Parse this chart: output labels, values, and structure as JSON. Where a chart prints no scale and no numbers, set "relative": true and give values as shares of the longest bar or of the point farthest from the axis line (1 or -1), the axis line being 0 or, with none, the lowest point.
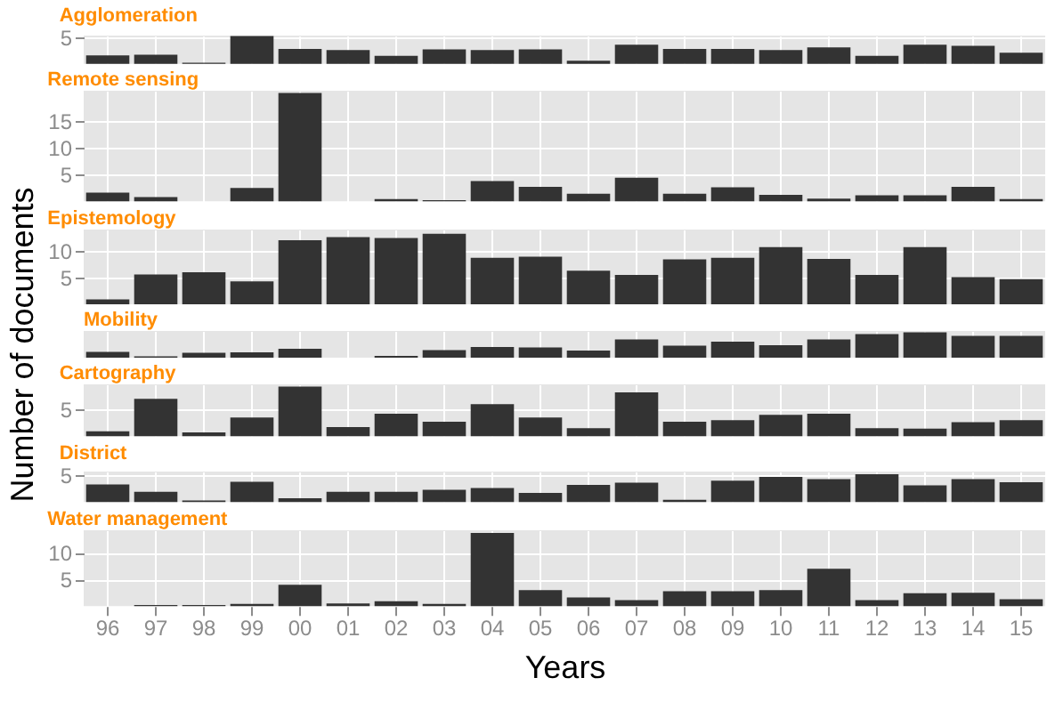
{
  "chart_data": [
    {
      "type": "bar",
      "title": "Agglomeration",
      "categories": [
        "96",
        "97",
        "98",
        "99",
        "00",
        "01",
        "02",
        "03",
        "04",
        "05",
        "06",
        "07",
        "08",
        "09",
        "10",
        "11",
        "12",
        "13",
        "14",
        "15"
      ],
      "values": [
        1.6,
        1.7,
        0.2,
        5.2,
        2.8,
        2.6,
        1.5,
        2.7,
        2.6,
        2.7,
        0.6,
        3.6,
        2.8,
        2.8,
        2.6,
        3.1,
        1.5,
        3.6,
        3.4,
        2.1
      ],
      "color": "#333333",
      "ylim": [
        0,
        5.3
      ],
      "yticks": [
        5
      ],
      "grid": true,
      "tick_labels": "y"
    },
    {
      "type": "bar",
      "title": "Remote sensing",
      "categories": [
        "96",
        "97",
        "98",
        "99",
        "00",
        "01",
        "02",
        "03",
        "04",
        "05",
        "06",
        "07",
        "08",
        "09",
        "10",
        "11",
        "12",
        "13",
        "14",
        "15"
      ],
      "values": [
        1.6,
        0.8,
        0,
        2.5,
        20.3,
        0,
        0.4,
        0.2,
        3.8,
        2.7,
        1.4,
        4.4,
        1.4,
        2.6,
        1.2,
        0.5,
        1.1,
        1.1,
        2.7,
        0.4
      ],
      "color": "#333333",
      "ylim": [
        0,
        20.7
      ],
      "yticks": [
        5,
        10,
        15
      ],
      "grid": true,
      "tick_labels": "y"
    },
    {
      "type": "bar",
      "title": "Epistemology",
      "categories": [
        "96",
        "97",
        "98",
        "99",
        "00",
        "01",
        "02",
        "03",
        "04",
        "05",
        "06",
        "07",
        "08",
        "09",
        "10",
        "11",
        "12",
        "13",
        "14",
        "15"
      ],
      "values": [
        0.9,
        5.6,
        6.0,
        4.3,
        12.0,
        12.6,
        12.4,
        13.2,
        8.7,
        8.9,
        6.3,
        5.5,
        8.4,
        8.7,
        10.7,
        8.5,
        5.5,
        10.7,
        5.1,
        4.7
      ],
      "color": "#333333",
      "ylim": [
        0,
        14
      ],
      "yticks": [
        5,
        10
      ],
      "grid": true,
      "tick_labels": "y"
    },
    {
      "type": "bar",
      "title": "Mobility",
      "ylabel": "Number of documents",
      "categories": [
        "96",
        "97",
        "98",
        "99",
        "00",
        "01",
        "02",
        "03",
        "04",
        "05",
        "06",
        "07",
        "08",
        "09",
        "10",
        "11",
        "12",
        "13",
        "14",
        "15"
      ],
      "values": [
        0.23,
        0.05,
        0.19,
        0.21,
        0.35,
        0,
        0.07,
        0.3,
        0.42,
        0.4,
        0.28,
        0.72,
        0.47,
        0.63,
        0.49,
        0.72,
        0.93,
        1,
        0.86,
        0.86
      ],
      "color": "#333333",
      "relative": true,
      "grid": true,
      "tick_labels": false
    },
    {
      "type": "bar",
      "title": "Cartography",
      "categories": [
        "96",
        "97",
        "98",
        "99",
        "00",
        "01",
        "02",
        "03",
        "04",
        "05",
        "06",
        "07",
        "08",
        "09",
        "10",
        "11",
        "12",
        "13",
        "14",
        "15"
      ],
      "values": [
        0.9,
        7.0,
        0.7,
        3.5,
        9.3,
        1.7,
        4.2,
        2.7,
        6.0,
        3.5,
        1.5,
        8.2,
        2.7,
        3.0,
        4.0,
        4.2,
        1.5,
        1.4,
        2.6,
        3.0
      ],
      "color": "#333333",
      "ylim": [
        0,
        9.7
      ],
      "yticks": [
        5
      ],
      "grid": true,
      "tick_labels": "y"
    },
    {
      "type": "bar",
      "title": "District",
      "categories": [
        "96",
        "97",
        "98",
        "99",
        "00",
        "01",
        "02",
        "03",
        "04",
        "05",
        "06",
        "07",
        "08",
        "09",
        "10",
        "11",
        "12",
        "13",
        "14",
        "15"
      ],
      "values": [
        3.3,
        1.9,
        0.3,
        3.8,
        0.7,
        1.9,
        1.9,
        2.3,
        2.6,
        1.7,
        3.2,
        3.6,
        0.4,
        4.0,
        4.7,
        4.3,
        5.2,
        3.1,
        4.3,
        3.7
      ],
      "color": "#333333",
      "ylim": [
        0,
        5.7
      ],
      "yticks": [
        5
      ],
      "grid": true,
      "tick_labels": "y"
    },
    {
      "type": "bar",
      "title": "Water management",
      "xlabel": "Years",
      "categories": [
        "96",
        "97",
        "98",
        "99",
        "00",
        "01",
        "02",
        "03",
        "04",
        "05",
        "06",
        "07",
        "08",
        "09",
        "10",
        "11",
        "12",
        "13",
        "14",
        "15"
      ],
      "values": [
        0,
        0.2,
        0.2,
        0.4,
        4.0,
        0.5,
        0.9,
        0.4,
        13.7,
        3.0,
        1.6,
        1.1,
        2.8,
        2.8,
        3.0,
        7.0,
        1.1,
        2.4,
        2.5,
        1.3
      ],
      "color": "#333333",
      "ylim": [
        0,
        14.2
      ],
      "yticks": [
        5,
        10
      ],
      "grid": true
    }
  ]
}
